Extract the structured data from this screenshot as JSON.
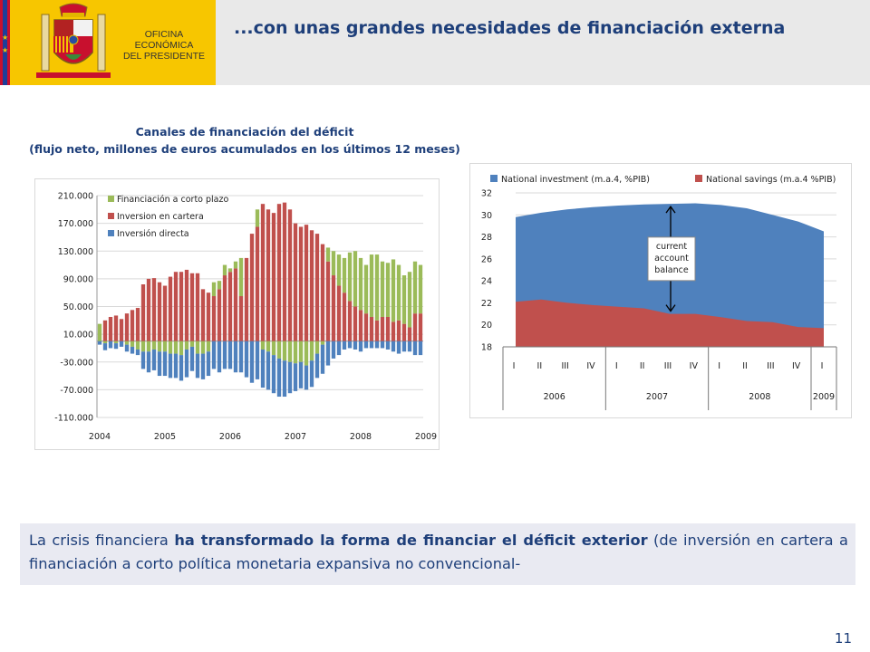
{
  "header": {
    "office_line1": "OFICINA",
    "office_line2": "ECONÓMICA",
    "office_line3": "DEL PRESIDENTE",
    "title": "...con unas grandes necesidades de financiación externa"
  },
  "chart1": {
    "title_line1": "Canales de financiación del déficit",
    "title_line2": "(flujo neto, millones de euros acumulados en los últimos 12 meses)"
  },
  "chart_data": [
    {
      "type": "bar",
      "stacked": true,
      "title": "Canales de financiación del déficit (flujo neto, millones de euros acumulados en los últimos 12 meses)",
      "ylim": [
        -110000,
        210000
      ],
      "y_ticks": [
        "210.000",
        "170.000",
        "130.000",
        "90.000",
        "50.000",
        "10.000",
        "-30.000",
        "-70.000",
        "-110.000"
      ],
      "x_ticks": [
        "2004",
        "2005",
        "2006",
        "2007",
        "2008",
        "2009"
      ],
      "grid": true,
      "legend_position": "top-left",
      "colors": {
        "corto_plazo": "#9bbb59",
        "cartera": "#c0504d",
        "directa": "#4f81bd"
      },
      "series": [
        {
          "name": "Financiación a corto plazo",
          "values": [
            25000,
            -3000,
            0,
            -3000,
            0,
            -5000,
            -8000,
            -12000,
            -15000,
            -15000,
            -12000,
            -15000,
            -15000,
            -18000,
            -18000,
            -20000,
            -12000,
            -8000,
            -18000,
            -18000,
            -15000,
            20000,
            12000,
            15000,
            5000,
            10000,
            55000,
            0,
            0,
            25000,
            -12000,
            -15000,
            -20000,
            -25000,
            -28000,
            -30000,
            -32000,
            -30000,
            -35000,
            -28000,
            -18000,
            -5000,
            20000,
            35000,
            45000,
            50000,
            70000,
            80000,
            75000,
            70000,
            90000,
            95000,
            80000,
            78000,
            90000,
            80000,
            70000,
            80000,
            75000,
            70000
          ]
        },
        {
          "name": "Inversion en cartera",
          "values": [
            0,
            30000,
            35000,
            37000,
            32000,
            40000,
            45000,
            48000,
            82000,
            90000,
            91000,
            85000,
            80000,
            93000,
            100000,
            100000,
            103000,
            98000,
            98000,
            75000,
            70000,
            65000,
            75000,
            95000,
            100000,
            105000,
            65000,
            120000,
            155000,
            165000,
            198000,
            190000,
            185000,
            198000,
            200000,
            190000,
            170000,
            165000,
            168000,
            160000,
            155000,
            140000,
            115000,
            95000,
            80000,
            70000,
            58000,
            50000,
            45000,
            40000,
            35000,
            30000,
            35000,
            35000,
            28000,
            30000,
            25000,
            20000,
            40000,
            40000
          ]
        },
        {
          "name": "Inversión directa",
          "values": [
            -5000,
            -10000,
            -10000,
            -8000,
            -8000,
            -10000,
            -10000,
            -8000,
            -25000,
            -30000,
            -30000,
            -35000,
            -35000,
            -35000,
            -35000,
            -37000,
            -40000,
            -35000,
            -35000,
            -37000,
            -35000,
            -40000,
            -45000,
            -40000,
            -40000,
            -45000,
            -45000,
            -52000,
            -60000,
            -55000,
            -55000,
            -55000,
            -55000,
            -55000,
            -52000,
            -45000,
            -40000,
            -38000,
            -35000,
            -38000,
            -35000,
            -42000,
            -35000,
            -25000,
            -20000,
            -12000,
            -10000,
            -12000,
            -15000,
            -10000,
            -10000,
            -10000,
            -10000,
            -12000,
            -15000,
            -18000,
            -15000,
            -15000,
            -20000,
            -20000
          ]
        }
      ]
    },
    {
      "type": "area",
      "ylim": [
        18,
        32
      ],
      "y_ticks": [
        "32",
        "30",
        "28",
        "26",
        "24",
        "22",
        "20",
        "18"
      ],
      "categories": [
        "I",
        "II",
        "III",
        "IV",
        "I",
        "II",
        "III",
        "IV",
        "I",
        "II",
        "III",
        "IV",
        "I"
      ],
      "years": [
        "2006",
        "2007",
        "2008",
        "2009"
      ],
      "grid": true,
      "legend_position": "top",
      "colors": {
        "investment": "#4f81bd",
        "savings": "#c0504d"
      },
      "series": [
        {
          "name": "National investment (m.a.4, %PIB)",
          "values": [
            29.8,
            30.2,
            30.5,
            30.7,
            30.85,
            30.95,
            31.0,
            31.05,
            30.9,
            30.6,
            30.0,
            29.4,
            28.5
          ]
        },
        {
          "name": "National savings (m.a.4 %PIB)",
          "values": [
            22.1,
            22.3,
            22.0,
            21.8,
            21.65,
            21.5,
            21.0,
            21.0,
            20.7,
            20.35,
            20.25,
            19.8,
            19.7
          ]
        }
      ],
      "annotation": "current account balance",
      "annotation_lines": [
        "current",
        "account",
        "balance"
      ]
    }
  ],
  "text_box": {
    "part1": "La crisis financiera ",
    "bold": "ha transformado la forma de financiar el déficit exterior",
    "part2": " (de inversión en cartera a financiación a corto política monetaria expansiva no convencional-"
  },
  "page_number": "11"
}
